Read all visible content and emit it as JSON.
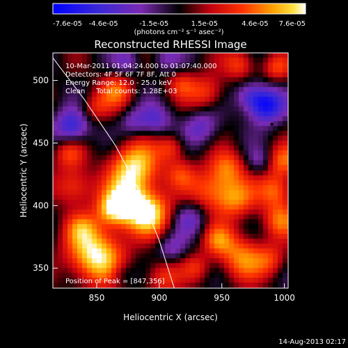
{
  "chart_data": {
    "type": "heatmap",
    "title": "Reconstructed RHESSI Image",
    "xlabel": "Heliocentric X (arcsec)",
    "ylabel": "Heliocentric Y (arcsec)",
    "xlim": [
      815,
      1003
    ],
    "ylim": [
      334,
      522
    ],
    "x_ticks": [
      850,
      900,
      950,
      1000
    ],
    "y_ticks": [
      350,
      400,
      450,
      500
    ],
    "colorbar": {
      "tick_labels": [
        "-7.6e-05",
        "-4.6e-05",
        "-1.5e-05",
        "1.5e-05",
        "4.6e-05",
        "7.6e-05"
      ],
      "range": [
        -7.6e-05,
        7.6e-05
      ],
      "units_label": "(photons cm⁻² s⁻¹ asec⁻²)"
    },
    "annotations": [
      "10-Mar-2011 01:04:24.000 to 01:07:40.000",
      "Detectors: 4F 5F 6F 7F 8F, Att 0",
      "Energy Range: 12.0 - 25.0 keV",
      "Clean     Total counts: 1.28E+03"
    ],
    "peak_label": "Position of Peak = [847,356]",
    "peak": {
      "x": 847,
      "y": 356
    },
    "min_marker": {
      "x": 990,
      "y": 465
    },
    "limb_curve": [
      [
        815,
        518
      ],
      [
        840,
        485
      ],
      [
        865,
        448
      ],
      [
        885,
        410
      ],
      [
        900,
        372
      ],
      [
        912,
        334
      ]
    ],
    "timestamp": "14-Aug-2013 02:17",
    "blobs": [
      {
        "x": 849,
        "y": 360,
        "r": 16,
        "a": 1.0
      },
      {
        "x": 881,
        "y": 430,
        "r": 14,
        "a": 0.92
      },
      {
        "x": 875,
        "y": 402,
        "r": 13,
        "a": 0.88
      },
      {
        "x": 894,
        "y": 393,
        "r": 12,
        "a": 0.8
      },
      {
        "x": 862,
        "y": 396,
        "r": 9,
        "a": 0.55
      },
      {
        "x": 942,
        "y": 412,
        "r": 13,
        "a": 0.6
      },
      {
        "x": 962,
        "y": 405,
        "r": 11,
        "a": 0.55
      },
      {
        "x": 955,
        "y": 430,
        "r": 10,
        "a": 0.52
      },
      {
        "x": 994,
        "y": 412,
        "r": 10,
        "a": 0.6
      },
      {
        "x": 997,
        "y": 388,
        "r": 10,
        "a": 0.55
      },
      {
        "x": 1000,
        "y": 435,
        "r": 9,
        "a": 0.55
      },
      {
        "x": 966,
        "y": 358,
        "r": 13,
        "a": 0.65
      },
      {
        "x": 947,
        "y": 372,
        "r": 9,
        "a": 0.5
      },
      {
        "x": 990,
        "y": 356,
        "r": 9,
        "a": 0.4
      },
      {
        "x": 832,
        "y": 415,
        "r": 11,
        "a": 0.55
      },
      {
        "x": 828,
        "y": 442,
        "r": 9,
        "a": 0.45
      },
      {
        "x": 838,
        "y": 382,
        "r": 9,
        "a": 0.4
      },
      {
        "x": 866,
        "y": 492,
        "r": 10,
        "a": 0.55
      },
      {
        "x": 848,
        "y": 478,
        "r": 8,
        "a": 0.35
      },
      {
        "x": 938,
        "y": 490,
        "r": 10,
        "a": 0.5
      },
      {
        "x": 918,
        "y": 497,
        "r": 8,
        "a": 0.4
      },
      {
        "x": 965,
        "y": 513,
        "r": 9,
        "a": 0.5
      },
      {
        "x": 994,
        "y": 510,
        "r": 8,
        "a": 0.45
      },
      {
        "x": 910,
        "y": 446,
        "r": 8,
        "a": 0.45
      },
      {
        "x": 917,
        "y": 425,
        "r": 8,
        "a": 0.35
      },
      {
        "x": 902,
        "y": 342,
        "r": 10,
        "a": 0.45
      },
      {
        "x": 930,
        "y": 350,
        "r": 8,
        "a": 0.35
      },
      {
        "x": 985,
        "y": 480,
        "r": 10,
        "a": -0.95
      },
      {
        "x": 830,
        "y": 462,
        "r": 10,
        "a": -0.7
      },
      {
        "x": 898,
        "y": 468,
        "r": 9,
        "a": -0.45
      },
      {
        "x": 934,
        "y": 462,
        "r": 10,
        "a": -0.45
      },
      {
        "x": 880,
        "y": 466,
        "r": 8,
        "a": -0.35
      },
      {
        "x": 972,
        "y": 488,
        "r": 8,
        "a": -0.4
      },
      {
        "x": 925,
        "y": 390,
        "r": 10,
        "a": -0.4
      },
      {
        "x": 910,
        "y": 365,
        "r": 8,
        "a": -0.35
      },
      {
        "x": 875,
        "y": 515,
        "r": 8,
        "a": -0.35
      },
      {
        "x": 905,
        "y": 518,
        "r": 8,
        "a": -0.3
      },
      {
        "x": 980,
        "y": 435,
        "r": 7,
        "a": -0.3
      },
      {
        "x": 870,
        "y": 345,
        "r": 7,
        "a": -0.25
      }
    ]
  }
}
